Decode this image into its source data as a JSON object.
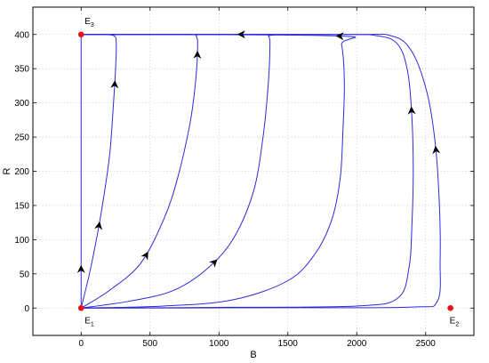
{
  "chart_data": {
    "type": "line",
    "title": "",
    "xlabel": "B",
    "ylabel": "R",
    "xlim": [
      -350,
      2850
    ],
    "ylim": [
      -40,
      440
    ],
    "xticks": [
      0,
      500,
      1000,
      1500,
      2000,
      2500
    ],
    "yticks": [
      0,
      50,
      100,
      150,
      200,
      250,
      300,
      350,
      400
    ],
    "grid": true,
    "line_color": "#2b2bd9",
    "point_color": "#e8141c",
    "points": [
      {
        "name": "E",
        "sub": "1",
        "x": 0,
        "y": 0
      },
      {
        "name": "E",
        "sub": "2",
        "x": 2680,
        "y": 0
      },
      {
        "name": "E",
        "sub": "3",
        "x": 0,
        "y": 400
      }
    ],
    "series": [
      {
        "values": [
          [
            0,
            0
          ],
          [
            0,
            100
          ],
          [
            0,
            200
          ],
          [
            0,
            300
          ],
          [
            0,
            400
          ]
        ],
        "arrows": [
          0.15
        ]
      },
      {
        "values": [
          [
            0,
            0
          ],
          [
            60,
            50
          ],
          [
            120,
            110
          ],
          [
            170,
            170
          ],
          [
            210,
            230
          ],
          [
            235,
            300
          ],
          [
            250,
            350
          ],
          [
            255,
            385
          ],
          [
            240,
            398
          ],
          [
            150,
            400
          ],
          [
            0,
            400
          ]
        ],
        "arrows": [
          0.28,
          0.74
        ]
      },
      {
        "values": [
          [
            0,
            0
          ],
          [
            200,
            25
          ],
          [
            430,
            65
          ],
          [
            600,
            130
          ],
          [
            700,
            190
          ],
          [
            790,
            270
          ],
          [
            830,
            330
          ],
          [
            845,
            380
          ],
          [
            835,
            398
          ],
          [
            780,
            400
          ],
          [
            0,
            400
          ]
        ],
        "arrows": [
          0.2,
          0.68
        ]
      },
      {
        "values": [
          [
            0,
            0
          ],
          [
            350,
            10
          ],
          [
            660,
            25
          ],
          [
            900,
            55
          ],
          [
            1100,
            100
          ],
          [
            1250,
            170
          ],
          [
            1320,
            250
          ],
          [
            1355,
            320
          ],
          [
            1370,
            380
          ],
          [
            1360,
            397
          ],
          [
            1300,
            400
          ],
          [
            0,
            400
          ]
        ],
        "arrows": [
          0.25,
          0.73
        ]
      },
      {
        "values": [
          [
            0,
            0
          ],
          [
            600,
            3
          ],
          [
            1100,
            12
          ],
          [
            1500,
            40
          ],
          [
            1700,
            80
          ],
          [
            1820,
            130
          ],
          [
            1880,
            190
          ],
          [
            1900,
            260
          ],
          [
            1910,
            330
          ],
          [
            1890,
            385
          ],
          [
            1840,
            398
          ],
          [
            0,
            400
          ]
        ],
        "arrows": [
          0.66
        ]
      },
      {
        "values": [
          [
            0,
            0
          ],
          [
            1000,
            1
          ],
          [
            2000,
            3
          ],
          [
            2300,
            15
          ],
          [
            2380,
            60
          ],
          [
            2400,
            120
          ],
          [
            2410,
            200
          ],
          [
            2400,
            280
          ],
          [
            2370,
            345
          ],
          [
            2300,
            385
          ],
          [
            2150,
            398
          ],
          [
            1800,
            400
          ],
          [
            0,
            400
          ]
        ],
        "arrows": [
          0.57
        ]
      },
      {
        "values": [
          [
            0,
            0
          ],
          [
            1500,
            0.5
          ],
          [
            2400,
            1.5
          ],
          [
            2585,
            10
          ],
          [
            2605,
            70
          ],
          [
            2600,
            150
          ],
          [
            2570,
            240
          ],
          [
            2510,
            315
          ],
          [
            2400,
            375
          ],
          [
            2250,
            398
          ],
          [
            1900,
            400
          ],
          [
            0,
            400
          ]
        ],
        "arrows": [
          0.54
        ]
      }
    ]
  }
}
